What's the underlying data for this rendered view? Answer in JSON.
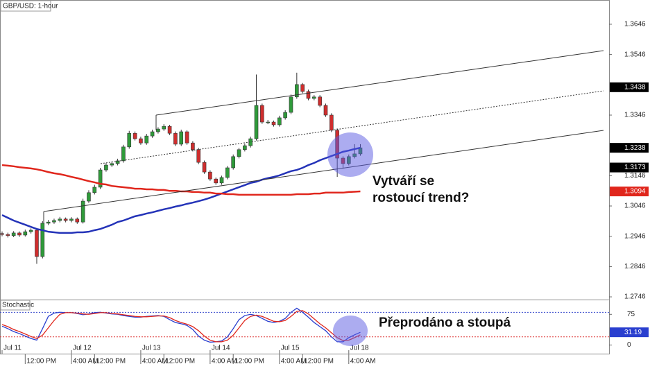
{
  "chart_data": [
    {
      "type": "candlestick",
      "title": "GBP/USD: 1-hour",
      "categories": [
        "Jul 11",
        null,
        null,
        null,
        null,
        null,
        null,
        null,
        null,
        null,
        null,
        null,
        "Jul 12",
        null,
        null,
        null,
        null,
        null,
        null,
        null,
        null,
        null,
        null,
        null,
        "Jul 13",
        null,
        null,
        null,
        null,
        null,
        null,
        null,
        null,
        null,
        null,
        null,
        "Jul 14",
        null,
        null,
        null,
        null,
        null,
        null,
        null,
        null,
        null,
        null,
        null,
        "Jul 15",
        null,
        null,
        null,
        null,
        null,
        null,
        null,
        null,
        null,
        null,
        null,
        "Jul 18",
        null,
        null
      ],
      "time_labels": [
        null,
        null,
        null,
        null,
        "12:00 PM",
        null,
        null,
        null,
        null,
        null,
        null,
        null,
        "4:00 AM",
        null,
        null,
        null,
        "12:00 PM",
        null,
        null,
        null,
        null,
        null,
        null,
        null,
        "4:00 AM",
        null,
        null,
        null,
        "12:00 PM",
        null,
        null,
        null,
        null,
        null,
        null,
        null,
        "4:00 AM",
        null,
        null,
        null,
        "12:00 PM",
        null,
        null,
        null,
        null,
        null,
        null,
        null,
        "4:00 AM",
        null,
        null,
        null,
        "12:00 PM",
        null,
        null,
        null,
        null,
        null,
        null,
        null,
        "4:00 AM",
        null,
        null
      ],
      "open": [
        1.2955,
        1.2952,
        1.2948,
        1.2957,
        1.295,
        1.2961,
        1.2966,
        1.2879,
        1.2989,
        1.2993,
        1.2998,
        1.3003,
        1.2998,
        1.3003,
        1.2993,
        1.3062,
        1.309,
        1.3108,
        1.3165,
        1.3181,
        1.3186,
        1.3195,
        1.3241,
        1.3286,
        1.3268,
        1.3254,
        1.3277,
        1.3291,
        1.33,
        1.3309,
        1.3286,
        1.325,
        1.3291,
        1.3254,
        1.3232,
        1.319,
        1.3158,
        1.3135,
        1.3122,
        1.314,
        1.3172,
        1.3209,
        1.3232,
        1.3245,
        1.3268,
        1.3378,
        1.3323,
        1.3323,
        1.3314,
        1.3337,
        1.3355,
        1.3406,
        1.3447,
        1.3424,
        1.3401,
        1.3406,
        1.3378,
        1.3346,
        1.3296,
        1.3204,
        1.3186,
        1.3209,
        1.3218
      ],
      "high": [
        1.2962,
        1.2958,
        1.2963,
        1.2962,
        1.2968,
        1.2972,
        1.297,
        1.2996,
        1.3,
        1.3004,
        1.301,
        1.3008,
        1.3009,
        1.3008,
        1.307,
        1.3098,
        1.3116,
        1.3172,
        1.3188,
        1.3193,
        1.3202,
        1.3248,
        1.3294,
        1.3292,
        1.3275,
        1.3284,
        1.3298,
        1.3306,
        1.3316,
        1.3314,
        1.3292,
        1.3298,
        1.3296,
        1.326,
        1.3238,
        1.3196,
        1.3164,
        1.314,
        1.3146,
        1.3178,
        1.3216,
        1.3238,
        1.3252,
        1.3275,
        1.348,
        1.3384,
        1.333,
        1.3328,
        1.3344,
        1.3362,
        1.3414,
        1.3486,
        1.3452,
        1.343,
        1.3412,
        1.3412,
        1.3384,
        1.3352,
        1.3302,
        1.321,
        1.3216,
        1.325,
        1.325
      ],
      "low": [
        1.2946,
        1.2942,
        1.2943,
        1.2944,
        1.2945,
        1.2955,
        1.2855,
        1.2873,
        1.2983,
        1.2987,
        1.2992,
        1.2992,
        1.2992,
        1.2987,
        1.2988,
        1.3056,
        1.3084,
        1.3102,
        1.3159,
        1.3175,
        1.318,
        1.3189,
        1.3235,
        1.3262,
        1.3248,
        1.3248,
        1.3271,
        1.3285,
        1.3294,
        1.328,
        1.3244,
        1.3244,
        1.3248,
        1.3226,
        1.3184,
        1.3152,
        1.3129,
        1.3116,
        1.3116,
        1.3134,
        1.3166,
        1.3203,
        1.3226,
        1.3239,
        1.3262,
        1.3317,
        1.3316,
        1.3308,
        1.3308,
        1.3331,
        1.3349,
        1.34,
        1.3418,
        1.3395,
        1.3395,
        1.3372,
        1.334,
        1.329,
        1.3142,
        1.317,
        1.318,
        1.3203,
        1.3212
      ],
      "close": [
        1.2952,
        1.2948,
        1.2957,
        1.295,
        1.2961,
        1.2966,
        1.2879,
        1.2989,
        1.2993,
        1.2998,
        1.3003,
        1.2998,
        1.3003,
        1.2993,
        1.3062,
        1.309,
        1.3108,
        1.3165,
        1.3181,
        1.3186,
        1.3195,
        1.3241,
        1.3286,
        1.3268,
        1.3254,
        1.3277,
        1.3291,
        1.33,
        1.3309,
        1.3286,
        1.325,
        1.3291,
        1.3254,
        1.3232,
        1.319,
        1.3158,
        1.3135,
        1.3122,
        1.314,
        1.3172,
        1.3209,
        1.3232,
        1.3245,
        1.3268,
        1.3378,
        1.3323,
        1.3323,
        1.3314,
        1.3337,
        1.3355,
        1.3406,
        1.3447,
        1.3424,
        1.3401,
        1.3406,
        1.3378,
        1.3346,
        1.3296,
        1.3204,
        1.3186,
        1.3209,
        1.3218,
        1.3238
      ],
      "up_color": "#2f9a3a",
      "down_color": "#cf2e2e",
      "overlays": [
        {
          "color": "#2433b8",
          "values": [
            1.3016,
            1.3007,
            1.2998,
            1.2991,
            1.2984,
            1.2977,
            1.297,
            1.2966,
            1.2961,
            1.2959,
            1.2957,
            1.2957,
            1.2957,
            1.2959,
            1.2959,
            1.2961,
            1.2966,
            1.297,
            1.2977,
            1.2984,
            1.2993,
            1.2998,
            1.3005,
            1.3012,
            1.3016,
            1.3021,
            1.3025,
            1.303,
            1.3035,
            1.3039,
            1.3044,
            1.3048,
            1.3053,
            1.3057,
            1.3062,
            1.3067,
            1.3073,
            1.308,
            1.3087,
            1.3094,
            1.3101,
            1.3108,
            1.3115,
            1.3122,
            1.3126,
            1.3133,
            1.3138,
            1.3142,
            1.3147,
            1.3154,
            1.3161,
            1.3165,
            1.3172,
            1.3181,
            1.3188,
            1.3197,
            1.3204,
            1.3211,
            1.3218,
            1.3225,
            1.3229,
            1.3234,
            1.3238
          ]
        },
        {
          "color": "#e0261c",
          "values": [
            1.3181,
            1.3179,
            1.3177,
            1.3174,
            1.3172,
            1.317,
            1.3167,
            1.3163,
            1.3158,
            1.3154,
            1.3151,
            1.3147,
            1.3142,
            1.3138,
            1.3133,
            1.3128,
            1.3124,
            1.3119,
            1.3117,
            1.3112,
            1.311,
            1.3108,
            1.3106,
            1.3103,
            1.3103,
            1.3101,
            1.3101,
            1.3099,
            1.3099,
            1.3096,
            1.3096,
            1.3094,
            1.3094,
            1.3092,
            1.3092,
            1.309,
            1.309,
            1.3087,
            1.3087,
            1.3085,
            1.3085,
            1.3083,
            1.3083,
            1.3083,
            1.3083,
            1.3083,
            1.3083,
            1.3083,
            1.3083,
            1.3083,
            1.3083,
            1.3085,
            1.3085,
            1.3085,
            1.3087,
            1.3087,
            1.309,
            1.309,
            1.309,
            1.309,
            1.3092,
            1.3093,
            1.3094
          ]
        }
      ],
      "ylim": [
        1.2737,
        1.3726
      ],
      "yticks": [
        1.2746,
        1.2846,
        1.2946,
        1.3046,
        1.3146,
        1.3346,
        1.3546,
        1.3646
      ],
      "price_markers": [
        {
          "value": 1.3438,
          "color": "#000000"
        },
        {
          "value": 1.3173,
          "color": "#000000"
        }
      ],
      "annotations": [
        "Vytváří se",
        "rostoucí trend?"
      ]
    },
    {
      "type": "line",
      "title": "Stochastic",
      "series": [
        {
          "color": "#2a3fcf",
          "values": [
            46,
            40,
            33,
            28,
            22,
            16,
            12,
            40,
            70,
            78,
            80,
            79,
            79,
            77,
            74,
            76,
            79,
            80,
            78,
            76,
            75,
            72,
            70,
            68,
            68,
            70,
            71,
            72,
            70,
            62,
            55,
            52,
            48,
            38,
            22,
            12,
            7,
            8,
            10,
            20,
            40,
            62,
            72,
            75,
            72,
            65,
            58,
            55,
            58,
            65,
            80,
            90,
            80,
            68,
            55,
            45,
            35,
            20,
            8,
            8,
            18,
            25,
            31.19
          ]
        },
        {
          "color": "#e0261c",
          "values": [
            50,
            45,
            38,
            33,
            27,
            21,
            16,
            24,
            42,
            60,
            75,
            79,
            79,
            78,
            76,
            75,
            77,
            79,
            79,
            77,
            76,
            74,
            72,
            70,
            69,
            69,
            70,
            71,
            71,
            67,
            60,
            55,
            51,
            45,
            35,
            22,
            12,
            8,
            8,
            12,
            24,
            42,
            60,
            70,
            73,
            70,
            64,
            58,
            57,
            60,
            70,
            82,
            84,
            76,
            64,
            52,
            42,
            30,
            18,
            11,
            12,
            18,
            25
          ]
        }
      ],
      "ylim": [
        -21,
        111
      ],
      "yticks": [
        0,
        75
      ],
      "levels": [
        {
          "value": 80,
          "color": "#3344cc"
        },
        {
          "value": 20,
          "color": "#dd3333"
        }
      ],
      "annotations": [
        "Přeprodáno a stoupá"
      ]
    }
  ]
}
